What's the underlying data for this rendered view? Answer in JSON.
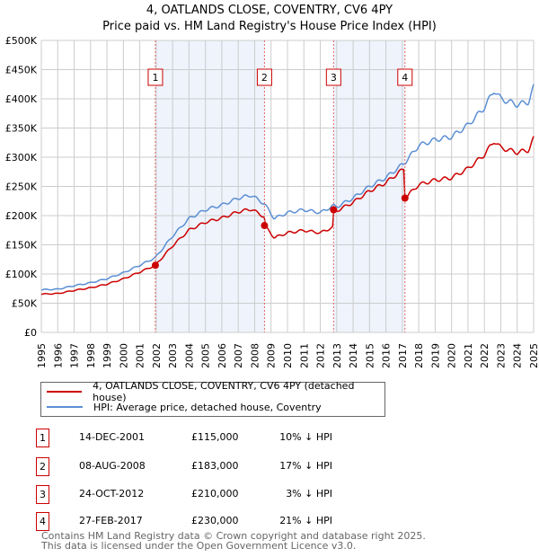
{
  "title": "4, OATLANDS CLOSE, COVENTRY, CV6 4PY",
  "subtitle": "Price paid vs. HM Land Registry's House Price Index (HPI)",
  "colors": {
    "price": "#cc0000",
    "hpi": "#5b8fd4",
    "shade": "#eef3fc",
    "grid": "#cccccc"
  },
  "legend": {
    "price": "4, OATLANDS CLOSE, COVENTRY, CV6 4PY (detached house)",
    "hpi": "HPI: Average price, detached house, Coventry"
  },
  "sales": [
    {
      "n": "1",
      "date": "14-DEC-2001",
      "price": "£115,000",
      "diff": "10% ↓ HPI",
      "x": 2001.95,
      "value": 115000
    },
    {
      "n": "2",
      "date": "08-AUG-2008",
      "price": "£183,000",
      "diff": "17% ↓ HPI",
      "x": 2008.6,
      "value": 183000
    },
    {
      "n": "3",
      "date": "24-OCT-2012",
      "price": "£210,000",
      "diff": "3% ↓ HPI",
      "x": 2012.81,
      "value": 210000
    },
    {
      "n": "4",
      "date": "27-FEB-2017",
      "price": "£230,000",
      "diff": "21% ↓ HPI",
      "x": 2017.16,
      "value": 230000
    }
  ],
  "footer": [
    "Contains HM Land Registry data © Crown copyright and database right 2025.",
    "This data is licensed under the Open Government Licence v3.0."
  ],
  "chart_data": {
    "type": "line",
    "xlim": [
      1995,
      2025
    ],
    "ylim": [
      0,
      500000
    ],
    "yticks": [
      "£0",
      "£50K",
      "£100K",
      "£150K",
      "£200K",
      "£250K",
      "£300K",
      "£350K",
      "£400K",
      "£450K",
      "£500K"
    ],
    "xticks": [
      "1995",
      "1996",
      "1997",
      "1998",
      "1999",
      "2000",
      "2001",
      "2002",
      "2003",
      "2004",
      "2005",
      "2006",
      "2007",
      "2008",
      "2009",
      "2010",
      "2011",
      "2012",
      "2013",
      "2014",
      "2015",
      "2016",
      "2017",
      "2018",
      "2019",
      "2020",
      "2021",
      "2022",
      "2023",
      "2024",
      "2025"
    ],
    "hpi": {
      "x": [
        1995,
        1996,
        1997,
        1998,
        1999,
        2000,
        2001,
        2001.95,
        2003,
        2004,
        2005,
        2006,
        2007,
        2007.8,
        2008.6,
        2009.2,
        2010,
        2011,
        2012,
        2012.8,
        2013,
        2014,
        2015,
        2016,
        2017.16,
        2018,
        2019,
        2020,
        2021,
        2022,
        2022.6,
        2023,
        2024,
        2024.7,
        2025
      ],
      "y": [
        73000,
        74000,
        80000,
        85000,
        92000,
        102000,
        115000,
        128000,
        165000,
        195000,
        210000,
        218000,
        230000,
        235000,
        220000,
        195000,
        205000,
        210000,
        205000,
        217000,
        215000,
        230000,
        250000,
        265000,
        291000,
        320000,
        330000,
        335000,
        355000,
        385000,
        415000,
        400000,
        390000,
        395000,
        420000
      ]
    }
  }
}
